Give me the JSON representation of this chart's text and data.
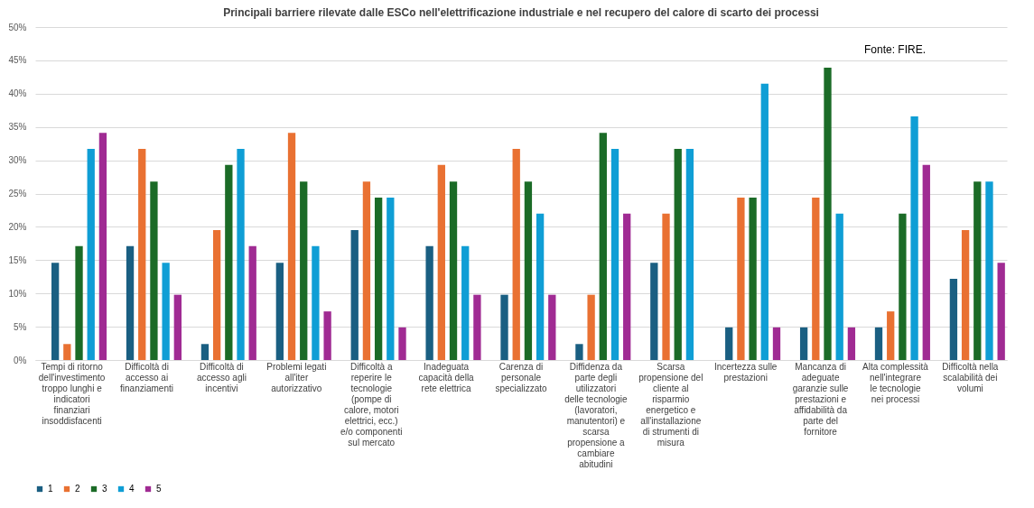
{
  "chart_data": {
    "type": "bar",
    "title": "Principali barriere rilevate dalle ESCo nell'elettrificazione industriale e nel recupero del calore di scarto dei processi",
    "categories": [
      "Tempi di ritorno dell'investimento troppo lunghi e indicatori finanziari insoddisfacenti",
      "Difficoltà di accesso ai finanziamenti",
      "Difficoltà di accesso agli incentivi",
      "Problemi legati all'iter autorizzativo",
      "Difficoltà a reperire le tecnologie (pompe di calore, motori elettrici, ecc.) e/o componenti sul mercato",
      "Inadeguata capacità della rete elettrica",
      "Carenza di personale specializzato",
      "Diffidenza da parte degli utilizzatori delle tecnologie (lavoratori, manutentori) e scarsa propensione a cambiare abitudini",
      "Scarsa propensione del cliente al risparmio energetico e all'installazione di strumenti di misura",
      "Incertezza sulle prestazioni",
      "Mancanza di adeguate garanzie sulle prestazioni e affidabilità da parte del fornitore",
      "Alta complessità nell'integrare le tecnologie nei processi",
      "Difficoltà nella scalabilità dei volumi"
    ],
    "series": [
      {
        "name": "1",
        "color": "#1a5f82",
        "values": [
          14.6,
          17.1,
          2.4,
          14.6,
          19.5,
          17.1,
          9.8,
          2.4,
          14.6,
          4.9,
          4.9,
          4.9,
          12.2
        ]
      },
      {
        "name": "2",
        "color": "#e97132",
        "values": [
          2.4,
          31.7,
          19.5,
          34.1,
          26.8,
          29.3,
          31.7,
          9.8,
          22.0,
          24.4,
          24.4,
          7.3,
          19.5
        ]
      },
      {
        "name": "3",
        "color": "#1b6b27",
        "values": [
          17.1,
          26.8,
          29.3,
          26.8,
          24.4,
          26.8,
          26.8,
          34.1,
          31.7,
          24.4,
          43.9,
          22.0,
          26.8
        ]
      },
      {
        "name": "4",
        "color": "#0f9ed5",
        "values": [
          31.7,
          14.6,
          31.7,
          17.1,
          24.4,
          17.1,
          22.0,
          31.7,
          31.7,
          41.5,
          22.0,
          36.6,
          26.8
        ]
      },
      {
        "name": "5",
        "color": "#a02b93",
        "values": [
          34.1,
          9.8,
          17.1,
          7.3,
          4.9,
          9.8,
          9.8,
          22.0,
          0,
          4.9,
          4.9,
          29.3,
          14.6
        ]
      }
    ],
    "ylim": [
      0,
      50
    ],
    "yticks": [
      {
        "value": 0,
        "label": "0%"
      },
      {
        "value": 5,
        "label": "5%"
      },
      {
        "value": 10,
        "label": "10%"
      },
      {
        "value": 15,
        "label": "15%"
      },
      {
        "value": 20,
        "label": "20%"
      },
      {
        "value": 25,
        "label": "25%"
      },
      {
        "value": 30,
        "label": "30%"
      },
      {
        "value": 35,
        "label": "35%"
      },
      {
        "value": 40,
        "label": "40%"
      },
      {
        "value": 45,
        "label": "45%"
      },
      {
        "value": 50,
        "label": "50%"
      }
    ],
    "grid": "y",
    "legend": "bottom",
    "annotations": [
      "Fonte: FIRE."
    ]
  }
}
